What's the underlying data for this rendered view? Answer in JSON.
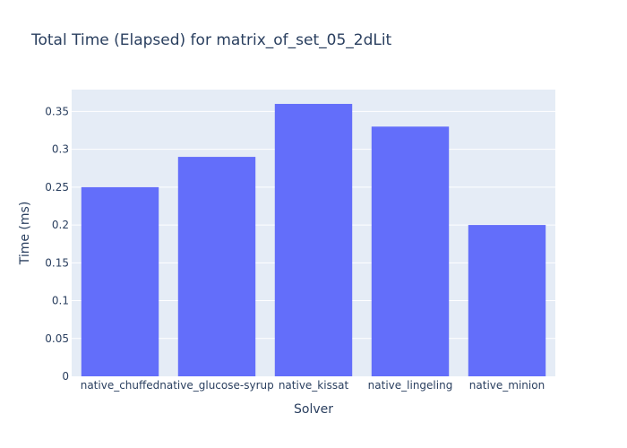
{
  "chart_data": {
    "type": "bar",
    "title": "Total Time (Elapsed) for matrix_of_set_05_2dLit",
    "xlabel": "Solver",
    "ylabel": "Time (ms)",
    "categories": [
      "native_chuffed",
      "native_glucose-syrup",
      "native_kissat",
      "native_lingeling",
      "native_minion"
    ],
    "values": [
      0.25,
      0.29,
      0.36,
      0.33,
      0.2
    ],
    "ylim": [
      0,
      0.3789
    ],
    "yticks": [
      0,
      0.05,
      0.1,
      0.15,
      0.2,
      0.25,
      0.3,
      0.35
    ],
    "ytick_labels": [
      "0",
      "0.05",
      "0.1",
      "0.15",
      "0.2",
      "0.25",
      "0.3",
      "0.35"
    ],
    "grid": true,
    "legend": "none",
    "colors": {
      "bar": "#636efa",
      "plot_bg": "#e5ecf6",
      "grid": "#ffffff",
      "text": "#2a3f5f"
    }
  }
}
